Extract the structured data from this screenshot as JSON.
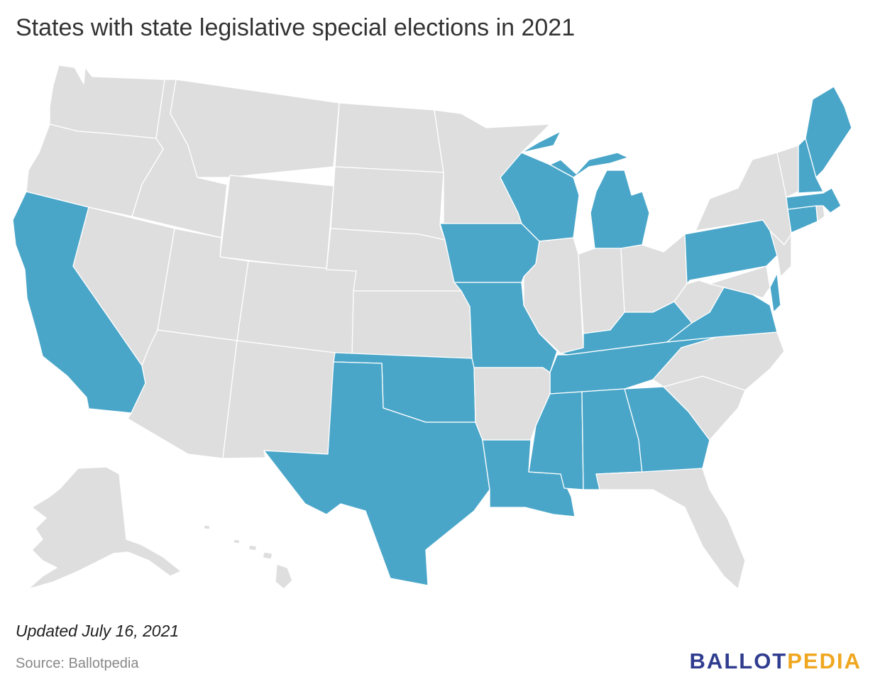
{
  "title": "States with state legislative special elections in 2021",
  "updated": "Updated July 16, 2021",
  "source": "Source: Ballotpedia",
  "logo": {
    "part1": "BALLOT",
    "part2": "PEDIA"
  },
  "colors": {
    "highlight": "#4aa6c9",
    "other": "#dedede",
    "border": "#ffffff"
  },
  "highlighted_states": [
    "California",
    "Texas",
    "Oklahoma",
    "Missouri",
    "Iowa",
    "Wisconsin",
    "Michigan",
    "Louisiana",
    "Mississippi",
    "Alabama",
    "Georgia",
    "Tennessee",
    "Kentucky",
    "Virginia",
    "Pennsylvania",
    "Connecticut",
    "Massachusetts",
    "New Hampshire",
    "Maine",
    "Delaware"
  ]
}
